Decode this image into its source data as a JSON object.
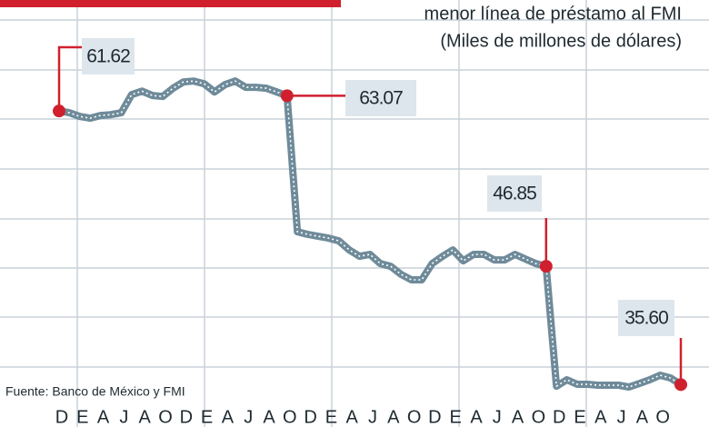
{
  "chart_data": {
    "type": "line",
    "title": "menor línea de préstamo al FMI",
    "subtitle": "(Miles de millones de dólares)",
    "source": "Fuente: Banco de México y FMI",
    "x": [
      0,
      1,
      2,
      3,
      4,
      5,
      6,
      7,
      8,
      9,
      10,
      11,
      12,
      13,
      14,
      15,
      16,
      17,
      18,
      19,
      20,
      21,
      22,
      23,
      24,
      25,
      26,
      27,
      28,
      29,
      30,
      31,
      32,
      33,
      34,
      35,
      36,
      37,
      38,
      39,
      40,
      41,
      42,
      43,
      44,
      45,
      46,
      47,
      48,
      49,
      50,
      51,
      52,
      53,
      54,
      55,
      56,
      57,
      58,
      59,
      60
    ],
    "xlim": [
      0,
      60
    ],
    "xticks": [
      {
        "value": 0,
        "label": "D"
      },
      {
        "value": 2,
        "label": "E"
      },
      {
        "value": 4,
        "label": "A"
      },
      {
        "value": 6,
        "label": "J"
      },
      {
        "value": 8,
        "label": "A"
      },
      {
        "value": 10,
        "label": "O"
      },
      {
        "value": 12,
        "label": "D"
      },
      {
        "value": 14,
        "label": "E"
      },
      {
        "value": 16,
        "label": "A"
      },
      {
        "value": 18,
        "label": "J"
      },
      {
        "value": 20,
        "label": "A"
      },
      {
        "value": 22,
        "label": "O"
      },
      {
        "value": 24,
        "label": "D"
      },
      {
        "value": 26,
        "label": "E"
      },
      {
        "value": 28,
        "label": "A"
      },
      {
        "value": 30,
        "label": "J"
      },
      {
        "value": 32,
        "label": "A"
      },
      {
        "value": 34,
        "label": "O"
      },
      {
        "value": 36,
        "label": "D"
      },
      {
        "value": 38,
        "label": "E"
      },
      {
        "value": 40,
        "label": "A"
      },
      {
        "value": 42,
        "label": "J"
      },
      {
        "value": 44,
        "label": "A"
      },
      {
        "value": 46,
        "label": "O"
      },
      {
        "value": 48,
        "label": "D"
      },
      {
        "value": 50,
        "label": "E"
      },
      {
        "value": 52,
        "label": "A"
      },
      {
        "value": 54,
        "label": "J"
      },
      {
        "value": 56,
        "label": "A"
      },
      {
        "value": 58,
        "label": "O"
      }
    ],
    "ylim": [
      32,
      72
    ],
    "series": [
      {
        "color": "#6f8b9a",
        "values": [
          61.62,
          61.45,
          61.1,
          60.93,
          61.19,
          61.27,
          61.45,
          63.17,
          63.51,
          63.09,
          63.0,
          63.78,
          64.38,
          64.47,
          64.21,
          63.43,
          64.12,
          64.47,
          63.87,
          63.87,
          63.78,
          63.43,
          63.07,
          50.13,
          49.88,
          49.7,
          49.53,
          49.27,
          48.41,
          47.8,
          47.98,
          47.11,
          46.85,
          46.08,
          45.56,
          45.56,
          47.11,
          47.8,
          48.41,
          47.37,
          47.98,
          47.98,
          47.46,
          47.46,
          47.98,
          47.54,
          47.11,
          46.85,
          35.45,
          36.06,
          35.63,
          35.63,
          35.54,
          35.54,
          35.54,
          35.37,
          35.71,
          36.06,
          36.49,
          36.23,
          35.6
        ],
        "value_labels": [
          "61.62",
          null,
          null,
          null,
          null,
          null,
          null,
          null,
          null,
          null,
          null,
          null,
          null,
          null,
          null,
          null,
          null,
          null,
          null,
          null,
          null,
          null,
          "63.07",
          null,
          null,
          null,
          null,
          null,
          null,
          null,
          null,
          null,
          null,
          null,
          null,
          null,
          null,
          null,
          null,
          null,
          null,
          null,
          null,
          null,
          null,
          null,
          null,
          "46.85",
          null,
          null,
          null,
          null,
          null,
          null,
          null,
          null,
          null,
          null,
          null,
          null,
          "35.60"
        ]
      }
    ],
    "highlight_color": "#d0202e"
  }
}
